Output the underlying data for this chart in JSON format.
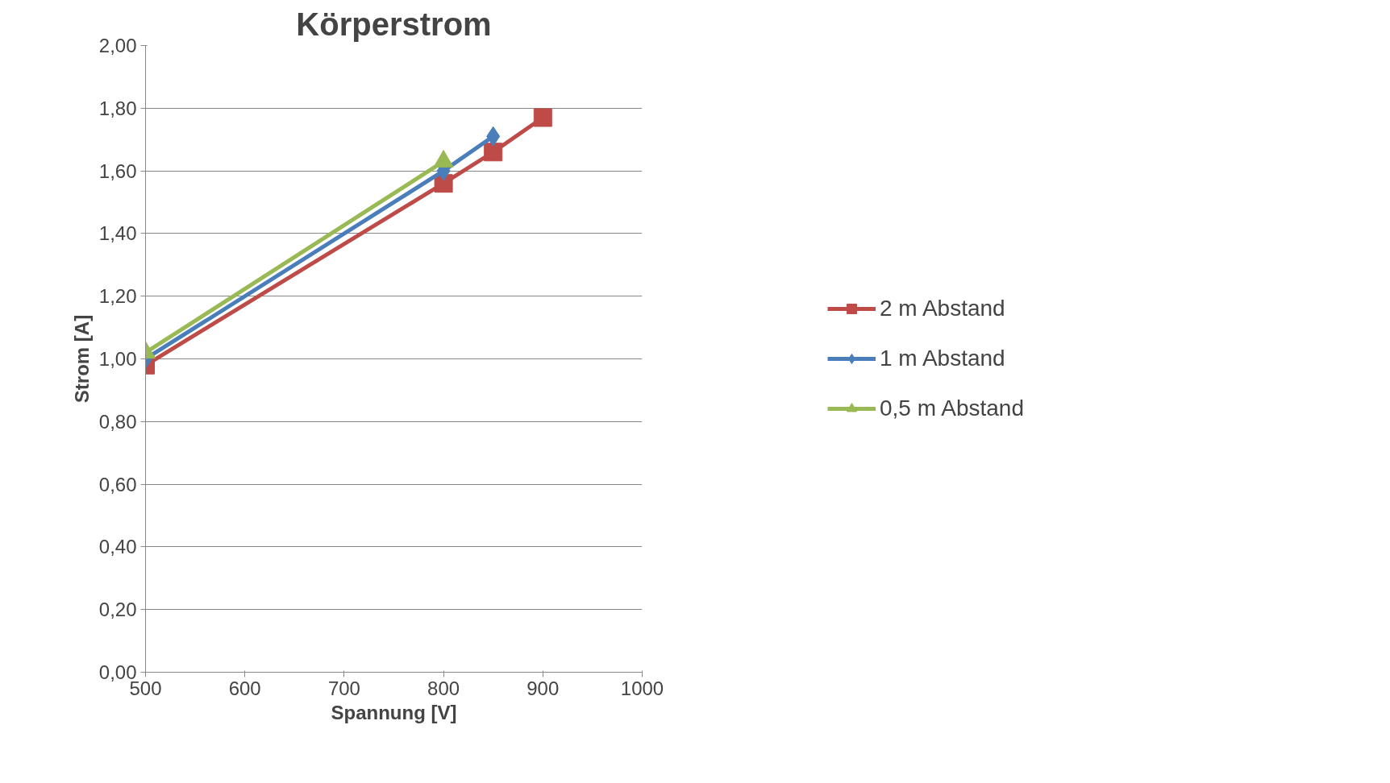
{
  "chart_data": {
    "type": "line",
    "title": "Körperstrom",
    "xlabel": "Spannung [V]",
    "ylabel": "Strom [A]",
    "xlim": [
      500,
      1000
    ],
    "xticks": [
      500,
      600,
      700,
      800,
      900,
      1000
    ],
    "ylim": [
      0,
      2
    ],
    "yticks": [
      {
        "value": 0,
        "label": "0,00"
      },
      {
        "value": 0.2,
        "label": "0,20"
      },
      {
        "value": 0.4,
        "label": "0,40"
      },
      {
        "value": 0.6,
        "label": "0,60"
      },
      {
        "value": 0.8,
        "label": "0,80"
      },
      {
        "value": 1.0,
        "label": "1,00"
      },
      {
        "value": 1.2,
        "label": "1,20"
      },
      {
        "value": 1.4,
        "label": "1,40"
      },
      {
        "value": 1.6,
        "label": "1,60"
      },
      {
        "value": 1.8,
        "label": "1,80"
      },
      {
        "value": 2.0,
        "label": "2,00"
      }
    ],
    "grid": "y",
    "legend": "right",
    "line_style": "solid",
    "series": [
      {
        "name": "2 m Abstand",
        "color": "#be4b48",
        "marker": "square",
        "x": [
          500,
          800,
          850,
          900
        ],
        "values": [
          0.98,
          1.56,
          1.66,
          1.77
        ]
      },
      {
        "name": "1 m Abstand",
        "color": "#4a7ebb",
        "marker": "diamond",
        "x": [
          500,
          800,
          850
        ],
        "values": [
          1.0,
          1.6,
          1.71
        ]
      },
      {
        "name": "0,5 m Abstand",
        "color": "#98b954",
        "marker": "triangle",
        "x": [
          500,
          800
        ],
        "values": [
          1.02,
          1.63
        ]
      }
    ]
  }
}
